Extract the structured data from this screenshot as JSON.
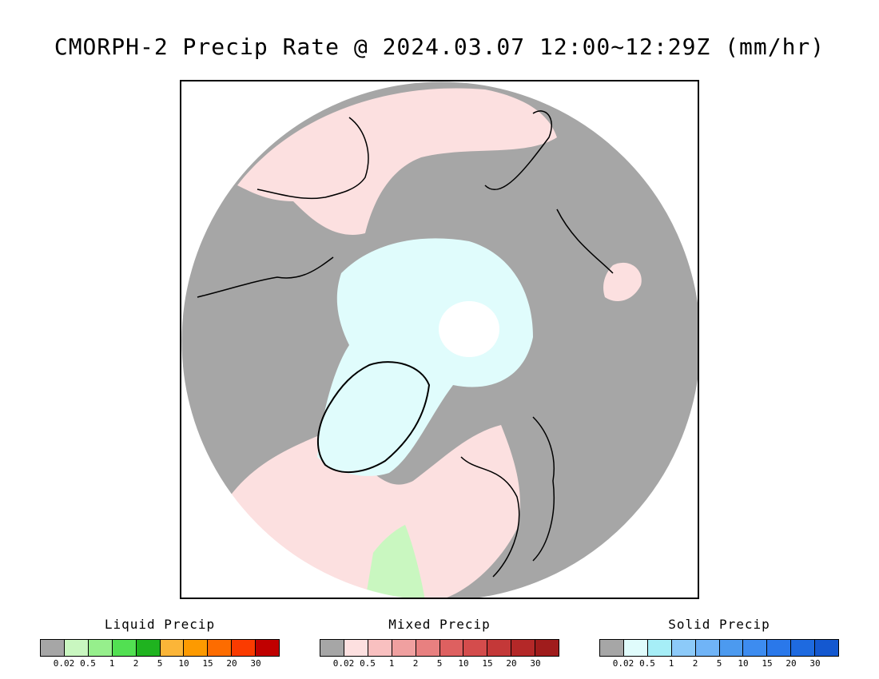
{
  "title": "CMORPH-2 Precip Rate @ 2024.03.07 12:00~12:29Z (mm/hr)",
  "map": {
    "projection": "polar stereographic (north)",
    "colors": {
      "background_no_precip": "#a6a6a6",
      "liquid_light": "#c9f7c0",
      "mixed_light": "#fce0e0",
      "mixed_mid": "#f8b9b9",
      "solid_light": "#e0fcfc",
      "solid_mid": "#a6eef7",
      "coastline": "#000000",
      "no_data": "#ffffff"
    }
  },
  "legends": [
    {
      "title": "Liquid Precip",
      "colors": [
        "#a6a6a6",
        "#c9f7c0",
        "#96ef8c",
        "#52e052",
        "#1fb31f",
        "#fbb538",
        "#fd9a00",
        "#fd6c00",
        "#fb3b00",
        "#c00000"
      ],
      "labels": [
        "0.02",
        "0.5",
        "1",
        "2",
        "5",
        "10",
        "15",
        "20",
        "30"
      ]
    },
    {
      "title": "Mixed Precip",
      "colors": [
        "#a6a6a6",
        "#fde0e0",
        "#f9c0c0",
        "#f0a0a0",
        "#e88080",
        "#de6060",
        "#d44c4c",
        "#c43838",
        "#b42828",
        "#a01c1c"
      ],
      "labels": [
        "0.02",
        "0.5",
        "1",
        "2",
        "5",
        "10",
        "15",
        "20",
        "30"
      ]
    },
    {
      "title": "Solid Precip",
      "colors": [
        "#a6a6a6",
        "#e0fcfc",
        "#a6eef7",
        "#8ccaf9",
        "#70b4f7",
        "#4c9aef",
        "#3d8cf0",
        "#2a78ea",
        "#1e6ae0",
        "#1458d0"
      ],
      "labels": [
        "0.02",
        "0.5",
        "1",
        "2",
        "5",
        "10",
        "15",
        "20",
        "30"
      ]
    }
  ]
}
